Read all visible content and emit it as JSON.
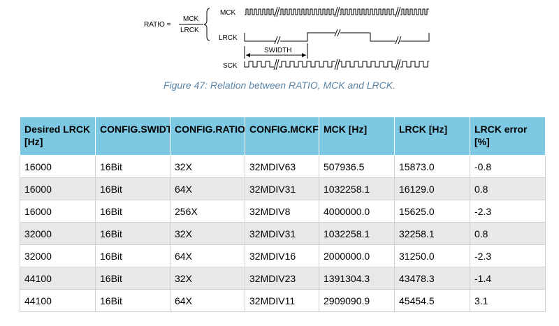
{
  "diagram": {
    "ratio_label": "RATIO =",
    "numerator": "MCK",
    "denominator": "LRCK",
    "mck_label": "MCK",
    "lrck_label": "LRCK",
    "swidth_label": "SWIDTH",
    "sck_label": "SCK"
  },
  "caption": "Figure 47: Relation between RATIO, MCK and LRCK.",
  "table": {
    "headers": [
      "Desired LRCK [Hz]",
      "CONFIG.SWIDTH",
      "CONFIG.RATIO",
      "CONFIG.MCKFREQ",
      "MCK [Hz]",
      "LRCK [Hz]",
      "LRCK error [%]"
    ],
    "rows": [
      [
        "16000",
        "16Bit",
        "32X",
        "32MDIV63",
        "507936.5",
        "15873.0",
        "-0.8"
      ],
      [
        "16000",
        "16Bit",
        "64X",
        "32MDIV31",
        "1032258.1",
        "16129.0",
        "0.8"
      ],
      [
        "16000",
        "16Bit",
        "256X",
        "32MDIV8",
        "4000000.0",
        "15625.0",
        "-2.3"
      ],
      [
        "32000",
        "16Bit",
        "32X",
        "32MDIV31",
        "1032258.1",
        "32258.1",
        "0.8"
      ],
      [
        "32000",
        "16Bit",
        "64X",
        "32MDIV16",
        "2000000.0",
        "31250.0",
        "-2.3"
      ],
      [
        "44100",
        "16Bit",
        "32X",
        "32MDIV23",
        "1391304.3",
        "43478.3",
        "-1.4"
      ],
      [
        "44100",
        "16Bit",
        "64X",
        "32MDIV11",
        "2909090.9",
        "45454.5",
        "3.1"
      ]
    ]
  }
}
